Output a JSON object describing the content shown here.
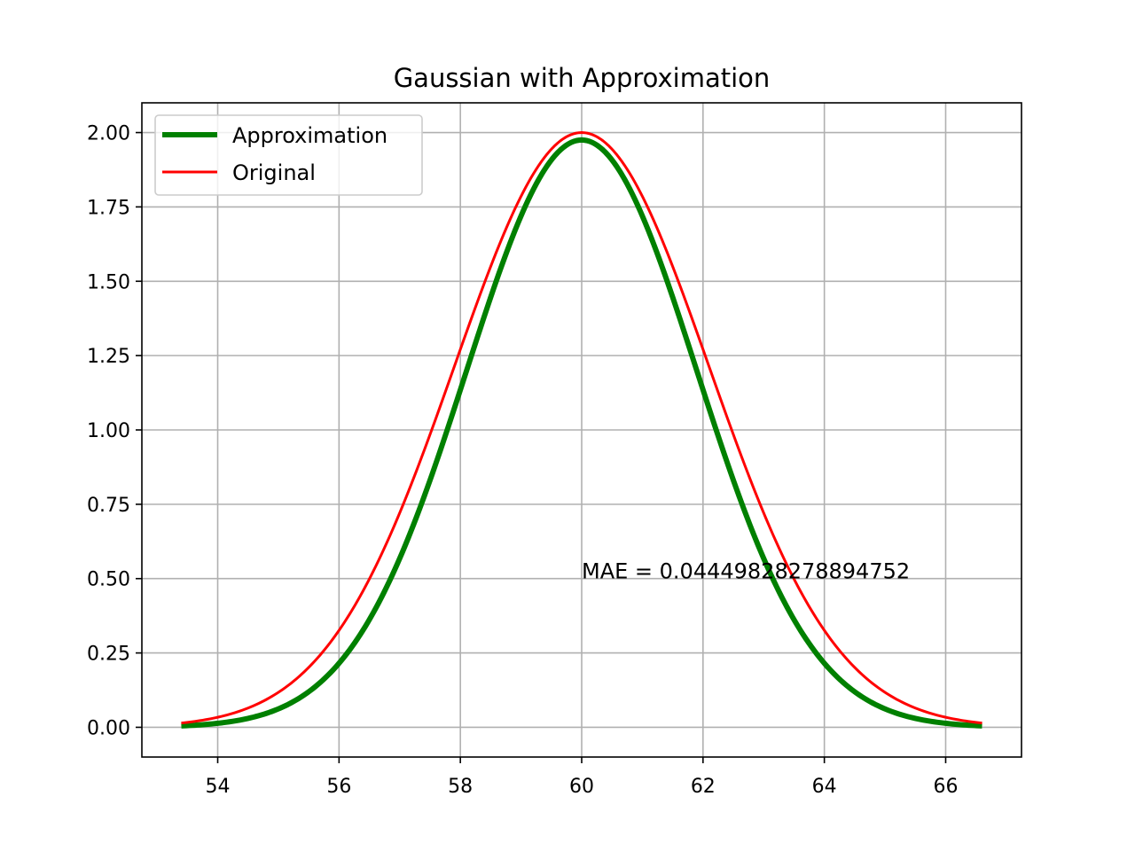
{
  "chart_data": {
    "type": "line",
    "title": "Gaussian with Approximation",
    "xlabel": "",
    "ylabel": "",
    "xlim": [
      52.75,
      67.25
    ],
    "ylim": [
      -0.1,
      2.1
    ],
    "xticks": [
      "54",
      "56",
      "58",
      "60",
      "62",
      "64",
      "66"
    ],
    "yticks": [
      "0.00",
      "0.25",
      "0.50",
      "0.75",
      "1.00",
      "1.25",
      "1.50",
      "1.75",
      "2.00"
    ],
    "grid": true,
    "legend_position": "upper-left",
    "x_range": [
      53.4,
      66.6
    ],
    "series": [
      {
        "name": "Approximation",
        "color": "#008000",
        "model": {
          "amplitude": 1.975,
          "mean": 60,
          "sigma": 1.9
        }
      },
      {
        "name": "Original",
        "color": "#ff0000",
        "model": {
          "amplitude": 2.0,
          "mean": 60,
          "sigma": 2.1
        }
      }
    ],
    "annotation": {
      "text": "MAE = 0.04449828278894752",
      "x": 60.0,
      "y": 0.5
    }
  }
}
